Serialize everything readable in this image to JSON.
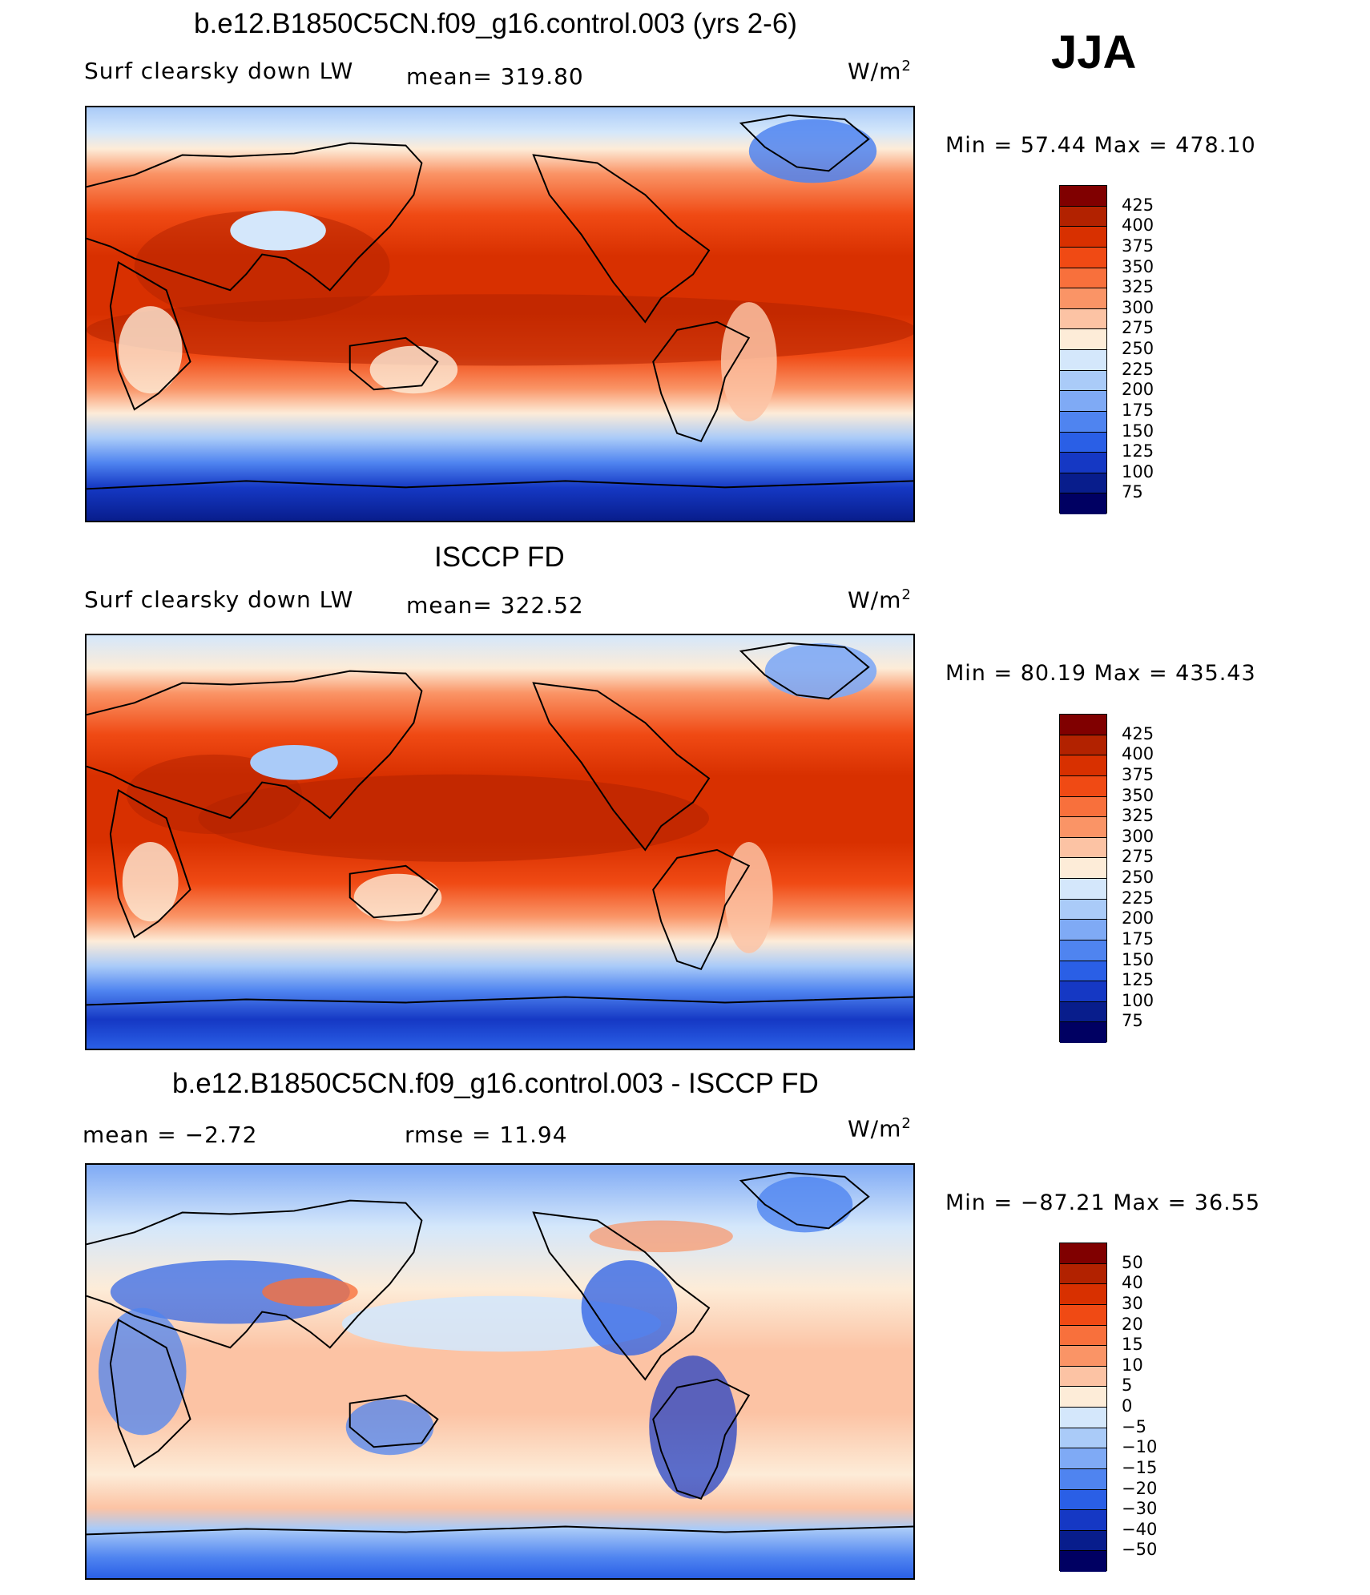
{
  "figure": {
    "season": "JJA",
    "panels": [
      {
        "title": "b.e12.B1850C5CN.f09_g16.control.003 (yrs 2-6)",
        "left_label": "Surf clearsky down LW",
        "center_label": "mean=  319.80",
        "units": "W/m",
        "units_sup": "2",
        "minmax": "Min =   57.44  Max  =  478.10",
        "colorbar_labels": [
          "425",
          "400",
          "375",
          "350",
          "325",
          "300",
          "275",
          "250",
          "225",
          "200",
          "175",
          "150",
          "125",
          "100",
          "75"
        ]
      },
      {
        "title": "ISCCP FD",
        "left_label": "Surf clearsky down LW",
        "center_label": "mean=  322.52",
        "units": "W/m",
        "units_sup": "2",
        "minmax": "Min =   80.19  Max  =  435.43",
        "colorbar_labels": [
          "425",
          "400",
          "375",
          "350",
          "325",
          "300",
          "275",
          "250",
          "225",
          "200",
          "175",
          "150",
          "125",
          "100",
          "75"
        ]
      },
      {
        "title": "b.e12.B1850C5CN.f09_g16.control.003 - ISCCP FD",
        "left_label": "mean =    −2.72",
        "center_label": "rmse =    11.94",
        "units": "W/m",
        "units_sup": "2",
        "minmax": "Min = −87.21  Max =    36.55",
        "colorbar_labels": [
          "50",
          "40",
          "30",
          "20",
          "15",
          "10",
          "5",
          "0",
          "−5",
          "−10",
          "−15",
          "−20",
          "−30",
          "−40",
          "−50"
        ]
      }
    ]
  },
  "colors": {
    "abs_scale": [
      "#800000",
      "#b22200",
      "#d83000",
      "#f04a14",
      "#f8703c",
      "#fa9466",
      "#fcc3a4",
      "#fdecd8",
      "#d4e7fb",
      "#aacbf8",
      "#7faaf5",
      "#4f84f0",
      "#2a5fe6",
      "#1538c4",
      "#081d8c",
      "#000062"
    ],
    "diff_scale": [
      "#800000",
      "#b22200",
      "#d83000",
      "#f04a14",
      "#f8703c",
      "#fa9466",
      "#fcc3a4",
      "#fdecd8",
      "#d4e7fb",
      "#aacbf8",
      "#7faaf5",
      "#4f84f0",
      "#2a5fe6",
      "#1538c4",
      "#081d8c",
      "#000062"
    ]
  }
}
